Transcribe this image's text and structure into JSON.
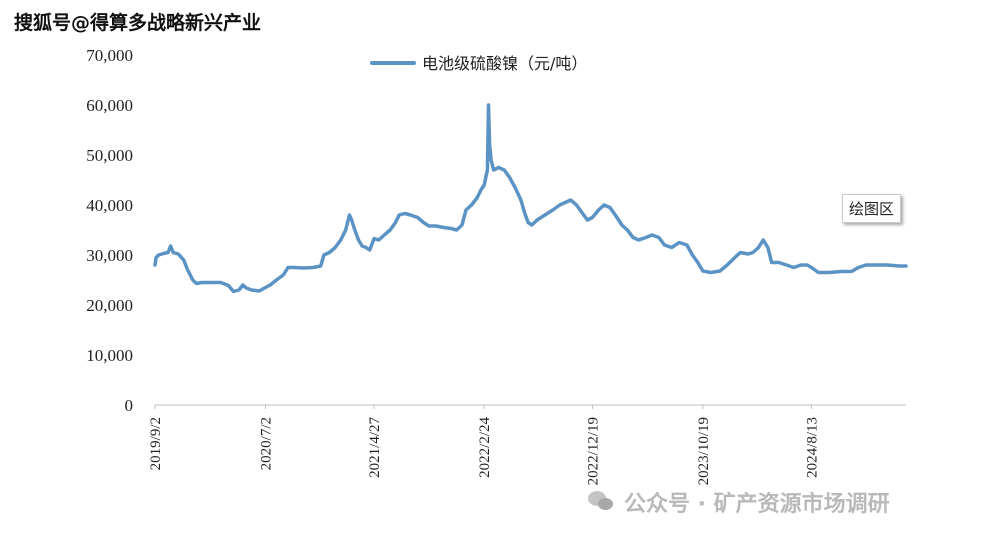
{
  "watermark": {
    "top_text": "搜狐号@得算多战略新兴产业",
    "bottom_text": "公众号 · 矿产资源市场调研",
    "bottom_icon": "wechat-icon"
  },
  "tooltip": {
    "label": "绘图区"
  },
  "chart_data": {
    "type": "line",
    "title": "",
    "xlabel": "",
    "ylabel": "",
    "legend": {
      "position": "top-center"
    },
    "ylim": [
      0,
      70000
    ],
    "y_ticks": [
      0,
      10000,
      20000,
      30000,
      40000,
      50000,
      60000,
      70000
    ],
    "y_tick_labels": [
      "0",
      "10,000",
      "20,000",
      "30,000",
      "40,000",
      "50,000",
      "60,000",
      "70,000"
    ],
    "x_range": [
      "2019-09-02",
      "2025-04-30"
    ],
    "x_ticks": [
      "2019-09-02",
      "2020-07-02",
      "2021-04-27",
      "2022-02-24",
      "2022-12-19",
      "2023-10-19",
      "2024-08-13"
    ],
    "x_tick_labels": [
      "2019/9/2",
      "2020/7/2",
      "2021/4/27",
      "2022/2/24",
      "2022/12/19",
      "2023/10/19",
      "2024/8/13"
    ],
    "grid": false,
    "colors": {
      "line": "#5b93c4",
      "axis": "#bfbfbf"
    },
    "series": [
      {
        "name": "电池级硫酸镍（元/吨）",
        "points": [
          [
            "2019-09-02",
            28000
          ],
          [
            "2019-09-05",
            29500
          ],
          [
            "2019-09-12",
            30000
          ],
          [
            "2019-09-25",
            30300
          ],
          [
            "2019-10-08",
            30500
          ],
          [
            "2019-10-15",
            31800
          ],
          [
            "2019-10-22",
            30500
          ],
          [
            "2019-11-05",
            30200
          ],
          [
            "2019-11-20",
            29000
          ],
          [
            "2019-12-01",
            27000
          ],
          [
            "2019-12-15",
            25000
          ],
          [
            "2019-12-25",
            24300
          ],
          [
            "2020-01-08",
            24500
          ],
          [
            "2020-02-01",
            24500
          ],
          [
            "2020-03-01",
            24500
          ],
          [
            "2020-03-22",
            23900
          ],
          [
            "2020-04-05",
            22700
          ],
          [
            "2020-04-20",
            23000
          ],
          [
            "2020-05-01",
            24000
          ],
          [
            "2020-05-10",
            23400
          ],
          [
            "2020-05-25",
            23000
          ],
          [
            "2020-06-15",
            22800
          ],
          [
            "2020-07-02",
            23500
          ],
          [
            "2020-07-15",
            24000
          ],
          [
            "2020-08-01",
            25000
          ],
          [
            "2020-08-20",
            26000
          ],
          [
            "2020-09-02",
            27500
          ],
          [
            "2020-09-20",
            27500
          ],
          [
            "2020-10-15",
            27400
          ],
          [
            "2020-11-10",
            27500
          ],
          [
            "2020-12-01",
            27800
          ],
          [
            "2020-12-10",
            30000
          ],
          [
            "2020-12-25",
            30500
          ],
          [
            "2021-01-10",
            31500
          ],
          [
            "2021-01-25",
            33000
          ],
          [
            "2021-02-08",
            35000
          ],
          [
            "2021-02-18",
            38000
          ],
          [
            "2021-02-24",
            37000
          ],
          [
            "2021-03-05",
            35000
          ],
          [
            "2021-03-15",
            33000
          ],
          [
            "2021-03-25",
            31800
          ],
          [
            "2021-04-05",
            31500
          ],
          [
            "2021-04-15",
            31000
          ],
          [
            "2021-04-27",
            33300
          ],
          [
            "2021-05-10",
            33000
          ],
          [
            "2021-05-25",
            34000
          ],
          [
            "2021-06-10",
            35000
          ],
          [
            "2021-06-25",
            36500
          ],
          [
            "2021-07-05",
            38000
          ],
          [
            "2021-07-20",
            38300
          ],
          [
            "2021-08-05",
            38000
          ],
          [
            "2021-08-25",
            37500
          ],
          [
            "2021-09-10",
            36500
          ],
          [
            "2021-09-25",
            35800
          ],
          [
            "2021-10-15",
            35800
          ],
          [
            "2021-11-05",
            35500
          ],
          [
            "2021-11-25",
            35300
          ],
          [
            "2021-12-10",
            35000
          ],
          [
            "2021-12-25",
            36000
          ],
          [
            "2022-01-05",
            39000
          ],
          [
            "2022-01-20",
            40000
          ],
          [
            "2022-02-05",
            41500
          ],
          [
            "2022-02-15",
            43000
          ],
          [
            "2022-02-24",
            44000
          ],
          [
            "2022-03-05",
            47000
          ],
          [
            "2022-03-08",
            60000
          ],
          [
            "2022-03-11",
            52000
          ],
          [
            "2022-03-15",
            49000
          ],
          [
            "2022-03-22",
            47000
          ],
          [
            "2022-04-05",
            47500
          ],
          [
            "2022-04-20",
            47000
          ],
          [
            "2022-05-05",
            45500
          ],
          [
            "2022-05-20",
            43500
          ],
          [
            "2022-06-05",
            41000
          ],
          [
            "2022-06-15",
            38500
          ],
          [
            "2022-06-25",
            36500
          ],
          [
            "2022-07-05",
            36000
          ],
          [
            "2022-07-20",
            37000
          ],
          [
            "2022-08-10",
            38000
          ],
          [
            "2022-09-01",
            39000
          ],
          [
            "2022-09-20",
            40000
          ],
          [
            "2022-10-05",
            40500
          ],
          [
            "2022-10-20",
            41000
          ],
          [
            "2022-11-05",
            40000
          ],
          [
            "2022-11-20",
            38500
          ],
          [
            "2022-12-05",
            37000
          ],
          [
            "2022-12-19",
            37500
          ],
          [
            "2023-01-05",
            39000
          ],
          [
            "2023-01-20",
            40000
          ],
          [
            "2023-02-05",
            39500
          ],
          [
            "2023-02-20",
            38000
          ],
          [
            "2023-03-10",
            36000
          ],
          [
            "2023-03-25",
            35000
          ],
          [
            "2023-04-10",
            33500
          ],
          [
            "2023-04-25",
            33000
          ],
          [
            "2023-05-15",
            33500
          ],
          [
            "2023-06-01",
            34000
          ],
          [
            "2023-06-20",
            33500
          ],
          [
            "2023-07-05",
            32000
          ],
          [
            "2023-07-25",
            31500
          ],
          [
            "2023-08-15",
            32500
          ],
          [
            "2023-09-05",
            32000
          ],
          [
            "2023-09-20",
            30000
          ],
          [
            "2023-10-05",
            28500
          ],
          [
            "2023-10-19",
            26800
          ],
          [
            "2023-11-10",
            26500
          ],
          [
            "2023-12-05",
            26800
          ],
          [
            "2023-12-25",
            28000
          ],
          [
            "2024-01-15",
            29500
          ],
          [
            "2024-01-30",
            30500
          ],
          [
            "2024-02-20",
            30200
          ],
          [
            "2024-03-05",
            30500
          ],
          [
            "2024-03-20",
            31500
          ],
          [
            "2024-04-02",
            33000
          ],
          [
            "2024-04-15",
            31500
          ],
          [
            "2024-04-25",
            28500
          ],
          [
            "2024-05-15",
            28500
          ],
          [
            "2024-06-05",
            28000
          ],
          [
            "2024-06-25",
            27500
          ],
          [
            "2024-07-15",
            28000
          ],
          [
            "2024-08-01",
            28000
          ],
          [
            "2024-08-13",
            27500
          ],
          [
            "2024-09-01",
            26500
          ],
          [
            "2024-10-01",
            26500
          ],
          [
            "2024-11-01",
            26700
          ],
          [
            "2024-12-01",
            26700
          ],
          [
            "2024-12-20",
            27500
          ],
          [
            "2025-01-10",
            28000
          ],
          [
            "2025-02-10",
            28000
          ],
          [
            "2025-03-10",
            28000
          ],
          [
            "2025-04-10",
            27800
          ],
          [
            "2025-04-30",
            27800
          ]
        ]
      }
    ]
  }
}
